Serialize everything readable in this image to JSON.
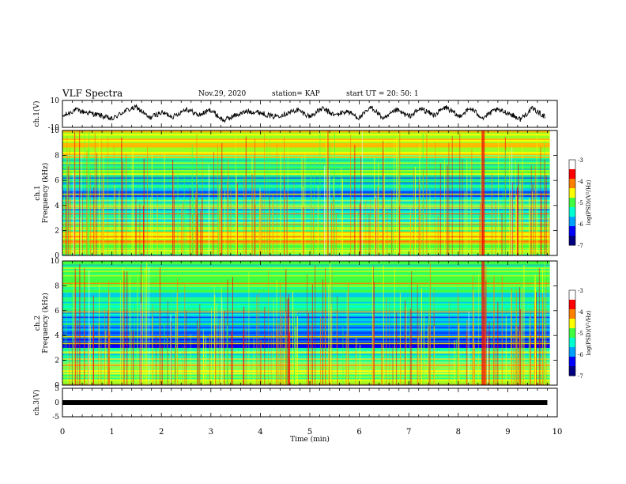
{
  "header": {
    "title": "VLF Spectra",
    "date": "Nov.29, 2020",
    "station": "station= KAP",
    "start": "start  UT =   20: 50: 1"
  },
  "chart_data": [
    {
      "type": "line",
      "panel": "waveform-ch1",
      "ylabel": "ch.1(V)",
      "ylim": [
        -10,
        10
      ],
      "yticks": [
        "10",
        "-10"
      ],
      "xlim": [
        0,
        10
      ],
      "x": [
        0,
        0.25,
        0.5,
        0.75,
        1,
        1.25,
        1.5,
        1.75,
        2,
        2.25,
        2.5,
        2.75,
        3,
        3.25,
        3.5,
        3.75,
        4,
        4.25,
        4.5,
        4.75,
        5,
        5.25,
        5.5,
        5.75,
        6,
        6.25,
        6.5,
        6.75,
        7,
        7.25,
        7.5,
        7.75,
        8,
        8.25,
        8.5,
        8.75,
        9,
        9.25,
        9.5,
        9.75
      ],
      "values": [
        -2,
        3,
        1,
        -1,
        -4,
        2,
        5,
        -3,
        1,
        -2,
        4,
        -1,
        3,
        -5,
        -1,
        2,
        1,
        -2,
        0,
        3,
        -2,
        4,
        -1,
        2,
        -3,
        5,
        -4,
        3,
        -2,
        4,
        -1,
        5,
        -2,
        4,
        -3,
        3,
        1,
        -4,
        4,
        -2
      ]
    },
    {
      "type": "heatmap",
      "panel": "spectrogram-ch1",
      "ylabel": "ch.1 Frequency (kHz)",
      "xlim": [
        0,
        10
      ],
      "ylim": [
        0,
        10
      ],
      "yticks": [
        "0",
        "2",
        "4",
        "6",
        "8",
        "10"
      ],
      "colorbar": {
        "label": "log(PSD)(V²/Hz)",
        "range": [
          -7,
          -3
        ],
        "ticks": [
          "-3",
          "-4",
          "-5",
          "-6",
          "-7"
        ],
        "colors": [
          "#000080",
          "#0000ff",
          "#00a0ff",
          "#00ffd0",
          "#40ff40",
          "#ffff00",
          "#ff8000",
          "#ff0000",
          "#ffffff"
        ]
      },
      "bands_khz": [
        {
          "from": 0,
          "to": 1.0,
          "level": -4.8
        },
        {
          "from": 1.0,
          "to": 1.9,
          "level": -4.4
        },
        {
          "from": 1.9,
          "to": 2.5,
          "level": -4.9
        },
        {
          "from": 2.5,
          "to": 3.6,
          "level": -5.3
        },
        {
          "from": 3.6,
          "to": 4.5,
          "level": -5.5
        },
        {
          "from": 4.5,
          "to": 5.3,
          "level": -6.1
        },
        {
          "from": 5.3,
          "to": 6.2,
          "level": -5.6
        },
        {
          "from": 6.2,
          "to": 7.8,
          "level": -5.0
        },
        {
          "from": 7.8,
          "to": 10,
          "level": -4.6
        }
      ]
    },
    {
      "type": "heatmap",
      "panel": "spectrogram-ch2",
      "ylabel": "ch.2 Frequency (kHz)",
      "xlim": [
        0,
        10
      ],
      "ylim": [
        0,
        10
      ],
      "yticks": [
        "0",
        "2",
        "4",
        "6",
        "8",
        "10"
      ],
      "colorbar": {
        "label": "log(PSD)(V²/Hz)",
        "range": [
          -7,
          -3
        ],
        "ticks": [
          "-3",
          "-4",
          "-5",
          "-6",
          "-7"
        ],
        "colors": [
          "#000080",
          "#0000ff",
          "#00a0ff",
          "#00ffd0",
          "#40ff40",
          "#ffff00",
          "#ff8000",
          "#ff0000",
          "#ffffff"
        ]
      },
      "bands_khz": [
        {
          "from": 0,
          "to": 0.9,
          "level": -4.8
        },
        {
          "from": 0.9,
          "to": 1.9,
          "level": -4.7
        },
        {
          "from": 1.9,
          "to": 3.0,
          "level": -5.4
        },
        {
          "from": 3.0,
          "to": 4.0,
          "level": -6.2
        },
        {
          "from": 4.0,
          "to": 5.5,
          "level": -6.0
        },
        {
          "from": 5.5,
          "to": 7.5,
          "level": -5.6
        },
        {
          "from": 7.5,
          "to": 10,
          "level": -5.1
        }
      ]
    },
    {
      "type": "line",
      "panel": "waveform-ch3",
      "ylabel": "ch.3(V)",
      "ylim": [
        -5,
        5
      ],
      "yticks": [
        "5",
        "0",
        "-5"
      ],
      "xlim": [
        0,
        10
      ],
      "xlabel": "Time  (min)",
      "xticks": [
        "0",
        "1",
        "2",
        "3",
        "4",
        "5",
        "6",
        "7",
        "8",
        "9",
        "10"
      ],
      "x": [
        0,
        9.8
      ],
      "values": [
        0,
        0
      ]
    }
  ]
}
